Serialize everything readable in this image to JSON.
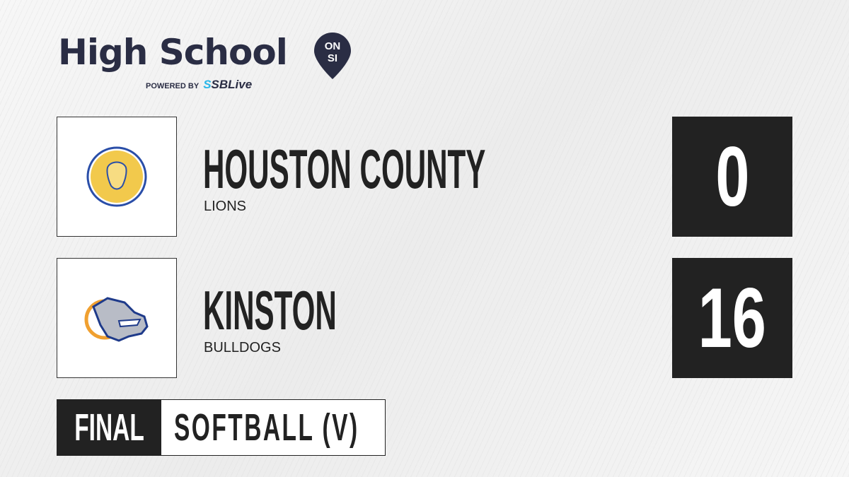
{
  "brand": {
    "title": "High School",
    "badge_top": "ON",
    "badge_bottom": "SI",
    "powered_by": "POWERED BY",
    "partner": "SBLive",
    "partner_accent": "#29b6e8",
    "color": "#2a2d44"
  },
  "teams": [
    {
      "name": "HOUSTON COUNTY",
      "mascot": "LIONS",
      "score": "0",
      "logo_icon": "lion-icon"
    },
    {
      "name": "KINSTON",
      "mascot": "BULLDOGS",
      "score": "16",
      "logo_icon": "bulldog-icon"
    }
  ],
  "status": {
    "label": "FINAL",
    "sport": "SOFTBALL (V)"
  }
}
